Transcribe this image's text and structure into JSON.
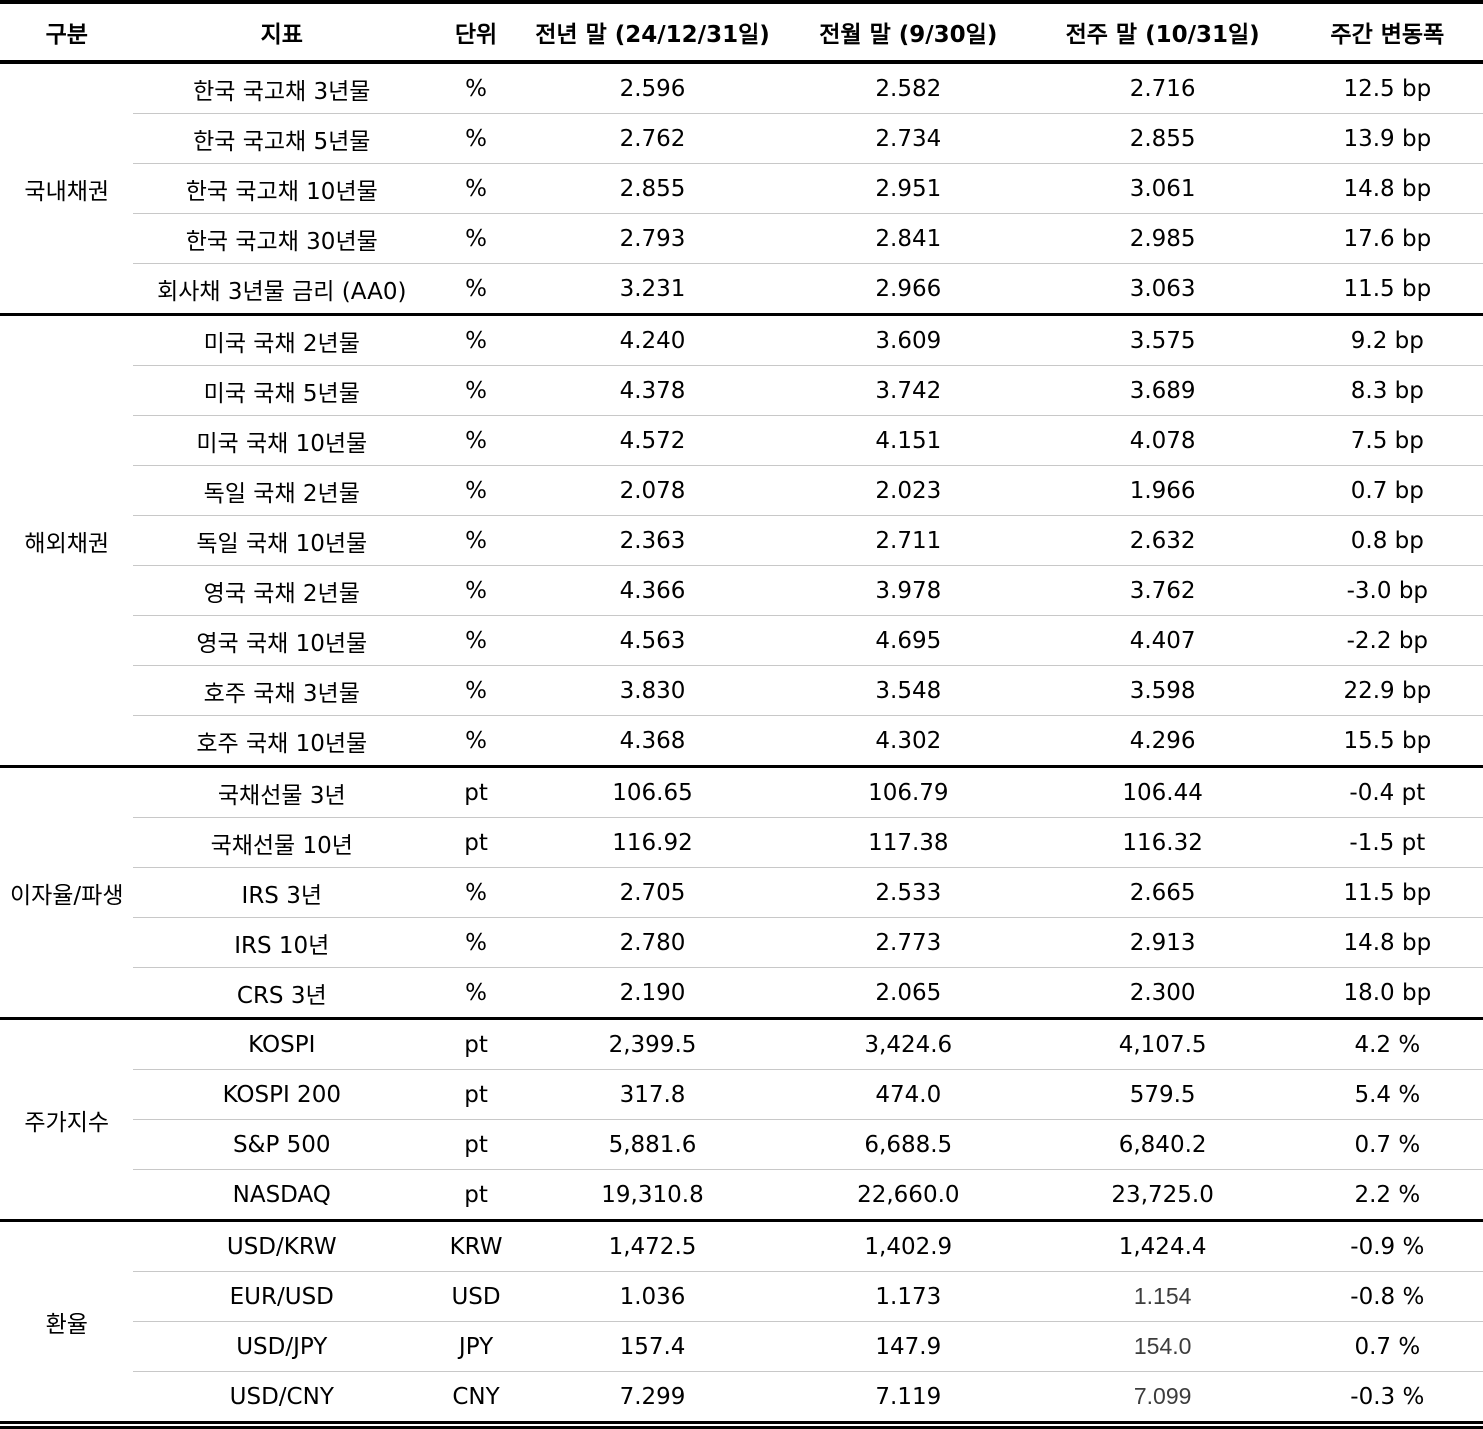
{
  "table": {
    "columns": [
      "구분",
      "지표",
      "단위",
      "전년 말 (24/12/31일)",
      "전월 말 (9/30일)",
      "전주 말 (10/31일)",
      "주간 변동폭"
    ],
    "sections": [
      {
        "category": "국내채권",
        "rows": [
          {
            "indicator": "한국 국고채 3년물",
            "unit": "%",
            "prev_year": "2.596",
            "prev_month": "2.582",
            "prev_week": "2.716",
            "change": "12.5 bp"
          },
          {
            "indicator": "한국 국고채 5년물",
            "unit": "%",
            "prev_year": "2.762",
            "prev_month": "2.734",
            "prev_week": "2.855",
            "change": "13.9 bp"
          },
          {
            "indicator": "한국 국고채 10년물",
            "unit": "%",
            "prev_year": "2.855",
            "prev_month": "2.951",
            "prev_week": "3.061",
            "change": "14.8 bp"
          },
          {
            "indicator": "한국 국고채 30년물",
            "unit": "%",
            "prev_year": "2.793",
            "prev_month": "2.841",
            "prev_week": "2.985",
            "change": "17.6 bp"
          },
          {
            "indicator": "회사채 3년물 금리 (AA0)",
            "unit": "%",
            "prev_year": "3.231",
            "prev_month": "2.966",
            "prev_week": "3.063",
            "change": "11.5 bp"
          }
        ]
      },
      {
        "category": "해외채권",
        "rows": [
          {
            "indicator": "미국 국채 2년물",
            "unit": "%",
            "prev_year": "4.240",
            "prev_month": "3.609",
            "prev_week": "3.575",
            "change": "9.2 bp"
          },
          {
            "indicator": "미국 국채 5년물",
            "unit": "%",
            "prev_year": "4.378",
            "prev_month": "3.742",
            "prev_week": "3.689",
            "change": "8.3 bp"
          },
          {
            "indicator": "미국 국채 10년물",
            "unit": "%",
            "prev_year": "4.572",
            "prev_month": "4.151",
            "prev_week": "4.078",
            "change": "7.5 bp"
          },
          {
            "indicator": "독일 국채 2년물",
            "unit": "%",
            "prev_year": "2.078",
            "prev_month": "2.023",
            "prev_week": "1.966",
            "change": "0.7 bp"
          },
          {
            "indicator": "독일 국채 10년물",
            "unit": "%",
            "prev_year": "2.363",
            "prev_month": "2.711",
            "prev_week": "2.632",
            "change": "0.8 bp"
          },
          {
            "indicator": "영국 국채 2년물",
            "unit": "%",
            "prev_year": "4.366",
            "prev_month": "3.978",
            "prev_week": "3.762",
            "change": "-3.0 bp"
          },
          {
            "indicator": "영국 국채 10년물",
            "unit": "%",
            "prev_year": "4.563",
            "prev_month": "4.695",
            "prev_week": "4.407",
            "change": "-2.2 bp"
          },
          {
            "indicator": "호주 국채 3년물",
            "unit": "%",
            "prev_year": "3.830",
            "prev_month": "3.548",
            "prev_week": "3.598",
            "change": "22.9 bp"
          },
          {
            "indicator": "호주 국채 10년물",
            "unit": "%",
            "prev_year": "4.368",
            "prev_month": "4.302",
            "prev_week": "4.296",
            "change": "15.5 bp"
          }
        ]
      },
      {
        "category": "이자율/파생",
        "rows": [
          {
            "indicator": "국채선물 3년",
            "unit": "pt",
            "prev_year": "106.65",
            "prev_month": "106.79",
            "prev_week": "106.44",
            "change": "-0.4 pt"
          },
          {
            "indicator": "국채선물 10년",
            "unit": "pt",
            "prev_year": "116.92",
            "prev_month": "117.38",
            "prev_week": "116.32",
            "change": "-1.5 pt"
          },
          {
            "indicator": "IRS 3년",
            "unit": "%",
            "prev_year": "2.705",
            "prev_month": "2.533",
            "prev_week": "2.665",
            "change": "11.5 bp"
          },
          {
            "indicator": "IRS 10년",
            "unit": "%",
            "prev_year": "2.780",
            "prev_month": "2.773",
            "prev_week": "2.913",
            "change": "14.8 bp"
          },
          {
            "indicator": "CRS 3년",
            "unit": "%",
            "prev_year": "2.190",
            "prev_month": "2.065",
            "prev_week": "2.300",
            "change": "18.0 bp"
          }
        ]
      },
      {
        "category": "주가지수",
        "rows": [
          {
            "indicator": "KOSPI",
            "unit": "pt",
            "prev_year": "2,399.5",
            "prev_month": "3,424.6",
            "prev_week": "4,107.5",
            "change": "4.2 %"
          },
          {
            "indicator": "KOSPI 200",
            "unit": "pt",
            "prev_year": "317.8",
            "prev_month": "474.0",
            "prev_week": "579.5",
            "change": "5.4 %"
          },
          {
            "indicator": "S&P 500",
            "unit": "pt",
            "prev_year": "5,881.6",
            "prev_month": "6,688.5",
            "prev_week": "6,840.2",
            "change": "0.7 %"
          },
          {
            "indicator": "NASDAQ",
            "unit": "pt",
            "prev_year": "19,310.8",
            "prev_month": "22,660.0",
            "prev_week": "23,725.0",
            "change": "2.2 %"
          }
        ]
      },
      {
        "category": "환율",
        "rows": [
          {
            "indicator": "USD/KRW",
            "unit": "KRW",
            "prev_year": "1,472.5",
            "prev_month": "1,402.9",
            "prev_week": "1,424.4",
            "change": "-0.9 %"
          },
          {
            "indicator": "EUR/USD",
            "unit": "USD",
            "prev_year": "1.036",
            "prev_month": "1.173",
            "prev_week": "1.154",
            "prev_week_light": true,
            "change": "-0.8 %"
          },
          {
            "indicator": "USD/JPY",
            "unit": "JPY",
            "prev_year": "157.4",
            "prev_month": "147.9",
            "prev_week": "154.0",
            "prev_week_light": true,
            "change": "0.7 %"
          },
          {
            "indicator": "USD/CNY",
            "unit": "CNY",
            "prev_year": "7.299",
            "prev_month": "7.119",
            "prev_week": "7.099",
            "prev_week_light": true,
            "change": "-0.3 %"
          }
        ]
      }
    ]
  }
}
